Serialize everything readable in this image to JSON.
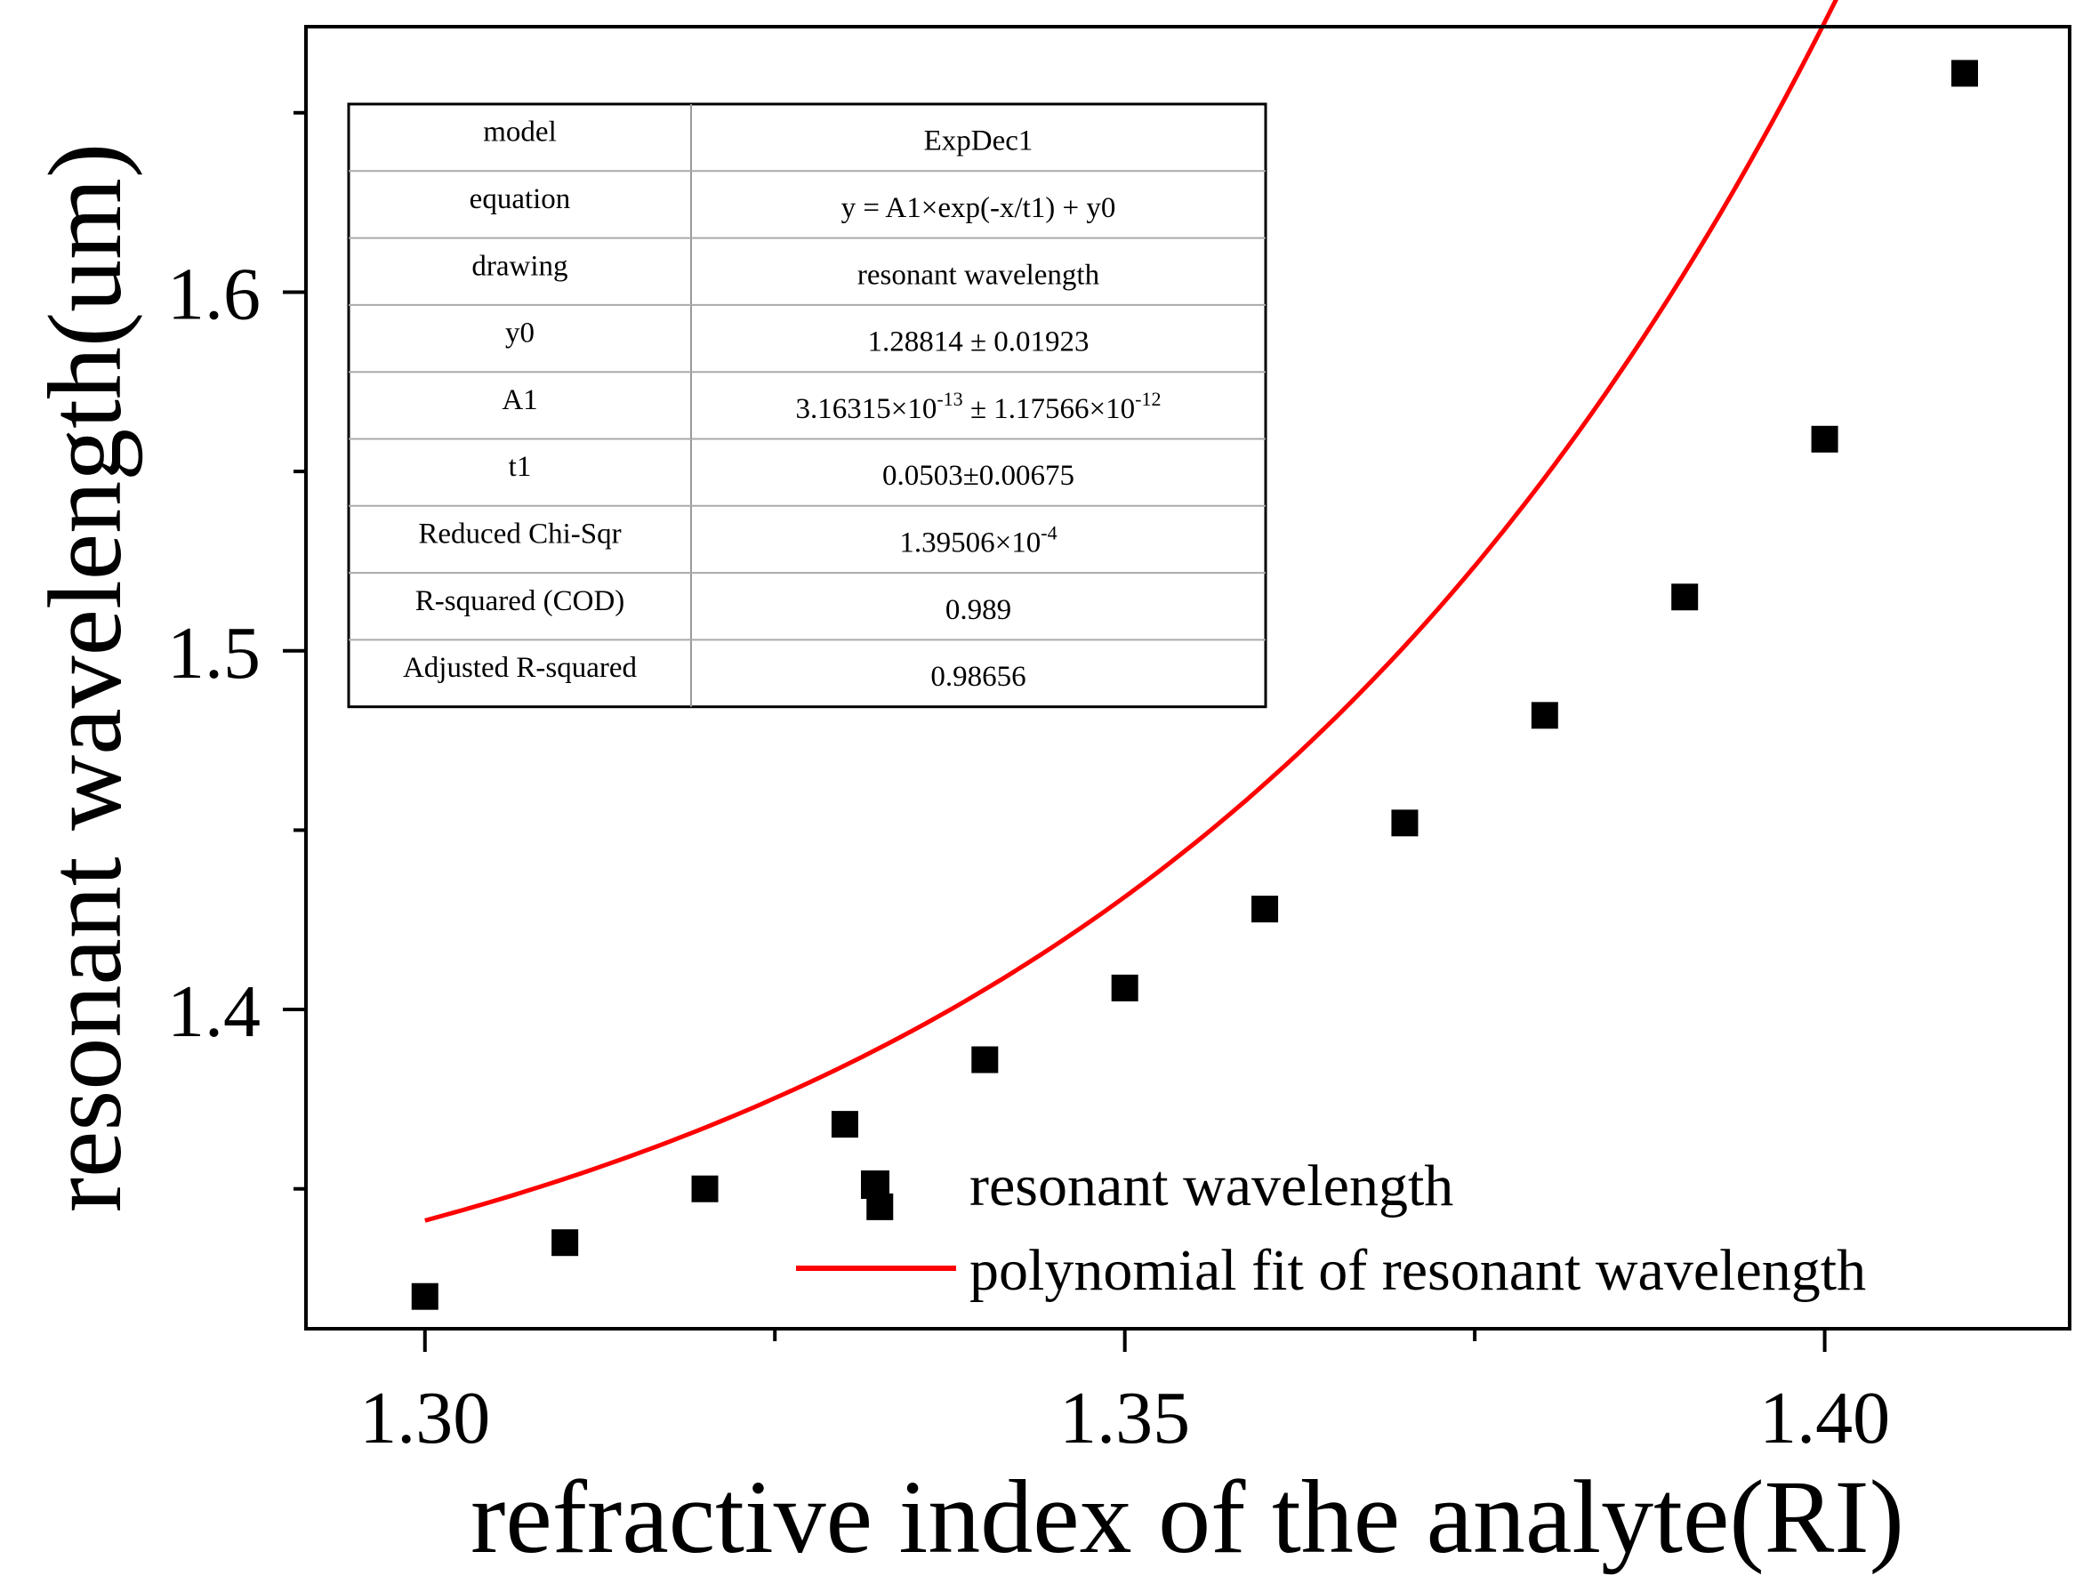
{
  "chart_data": {
    "type": "scatter",
    "title": "",
    "xlabel": "refractive index of the analyte(RI)",
    "ylabel": "resonant wavelength(um)",
    "xlim": [
      1.2915,
      1.4175
    ],
    "ylim": [
      1.311,
      1.674
    ],
    "x_major_ticks": [
      1.3,
      1.35,
      1.4
    ],
    "x_tick_labels": [
      "1.30",
      "1.35",
      "1.40"
    ],
    "x_minor_ticks": [
      1.325,
      1.375
    ],
    "y_major_ticks": [
      1.4,
      1.5,
      1.6
    ],
    "y_tick_labels": [
      "1.4",
      "1.5",
      "1.6"
    ],
    "y_minor_ticks": [
      1.35,
      1.45,
      1.55,
      1.65
    ],
    "series": [
      {
        "name": "resonant wavelength",
        "kind": "scatter",
        "marker": "square",
        "color": "#000000",
        "points": [
          {
            "x": 1.3,
            "y": 1.32
          },
          {
            "x": 1.31,
            "y": 1.335
          },
          {
            "x": 1.32,
            "y": 1.35
          },
          {
            "x": 1.33,
            "y": 1.368
          },
          {
            "x": 1.3325,
            "y": 1.345
          },
          {
            "x": 1.34,
            "y": 1.386
          },
          {
            "x": 1.35,
            "y": 1.406
          },
          {
            "x": 1.36,
            "y": 1.428
          },
          {
            "x": 1.37,
            "y": 1.452
          },
          {
            "x": 1.38,
            "y": 1.482
          },
          {
            "x": 1.39,
            "y": 1.515
          },
          {
            "x": 1.4,
            "y": 1.559
          },
          {
            "x": 1.41,
            "y": 1.661
          }
        ]
      },
      {
        "name": "polynomial fit of resonant wavelength",
        "kind": "line",
        "color": "#ff0000",
        "fit": {
          "y0": 1.28814,
          "A1": 3.16315e-13,
          "t1": 0.0503,
          "x_start": 1.3,
          "x_end": 1.41
        }
      }
    ],
    "legend": {
      "placement": "bottom-right",
      "entries": [
        "resonant wavelength",
        "polynomial fit of resonant wavelength"
      ]
    },
    "fit_table": {
      "rows": [
        {
          "label": "model",
          "value": "ExpDec1"
        },
        {
          "label": "equation",
          "value": "y = A1×exp(-x/t1) + y0"
        },
        {
          "label": "drawing",
          "value": "resonant wavelength"
        },
        {
          "label": "y0",
          "value": "1.28814 ± 0.01923"
        },
        {
          "label": "A1",
          "value_parts": [
            "3.16315×10",
            "-13",
            " ± 1.17566×10",
            "-12"
          ]
        },
        {
          "label": "t1",
          "value": "0.0503±0.00675"
        },
        {
          "label": "Reduced Chi-Sqr",
          "value_parts": [
            "1.39506×10",
            "-4"
          ]
        },
        {
          "label": "R-squared (COD)",
          "value": "0.989"
        },
        {
          "label": "Adjusted R-squared",
          "value": "0.98656"
        }
      ]
    }
  }
}
